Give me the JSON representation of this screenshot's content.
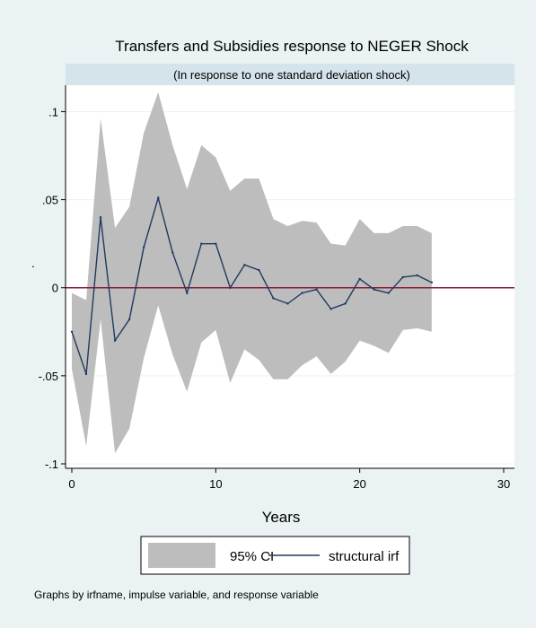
{
  "chart_data": {
    "type": "line",
    "title": "Transfers and Subsidies response to NEGER Shock",
    "subtitle": "(In response to one standard deviation shock)",
    "xlabel": "Years",
    "ylabel": ".",
    "xlim": [
      0,
      30
    ],
    "ylim": [
      -0.1,
      0.115
    ],
    "x_ticks": [
      0,
      10,
      20,
      30
    ],
    "x_tick_labels": [
      "0",
      "10",
      "20",
      "30"
    ],
    "y_ticks": [
      -0.1,
      -0.05,
      0,
      0.05,
      0.1
    ],
    "y_tick_labels": [
      "-.1",
      "-.05",
      "0",
      ".05",
      ".1"
    ],
    "grid": true,
    "reference_line": {
      "y": 0,
      "color": "#8b1a3a"
    },
    "legend_position": "bottom",
    "x": [
      0,
      1,
      2,
      3,
      4,
      5,
      6,
      7,
      8,
      9,
      10,
      11,
      12,
      13,
      14,
      15,
      16,
      17,
      18,
      19,
      20,
      21,
      22,
      23,
      24,
      25
    ],
    "series": [
      {
        "name": "95% CI",
        "kind": "band",
        "color": "#bdbdbd",
        "upper": [
          -0.003,
          -0.007,
          0.096,
          0.034,
          0.046,
          0.088,
          0.111,
          0.081,
          0.056,
          0.081,
          0.074,
          0.055,
          0.062,
          0.062,
          0.039,
          0.035,
          0.038,
          0.037,
          0.025,
          0.024,
          0.039,
          0.031,
          0.031,
          0.035,
          0.035,
          0.031
        ],
        "lower": [
          -0.046,
          -0.09,
          -0.018,
          -0.094,
          -0.08,
          -0.04,
          -0.01,
          -0.038,
          -0.059,
          -0.031,
          -0.024,
          -0.054,
          -0.035,
          -0.041,
          -0.052,
          -0.052,
          -0.044,
          -0.039,
          -0.049,
          -0.042,
          -0.03,
          -0.033,
          -0.037,
          -0.024,
          -0.023,
          -0.025
        ]
      },
      {
        "name": "structural irf",
        "kind": "line",
        "color": "#1f3a5f",
        "values": [
          -0.025,
          -0.049,
          0.04,
          -0.03,
          -0.018,
          0.023,
          0.051,
          0.02,
          -0.003,
          0.025,
          0.025,
          0.0,
          0.013,
          0.01,
          -0.006,
          -0.009,
          -0.003,
          -0.001,
          -0.012,
          -0.009,
          0.005,
          -0.001,
          -0.003,
          0.006,
          0.007,
          0.003
        ]
      }
    ],
    "note": "Graphs by irfname, impulse variable, and response variable"
  }
}
